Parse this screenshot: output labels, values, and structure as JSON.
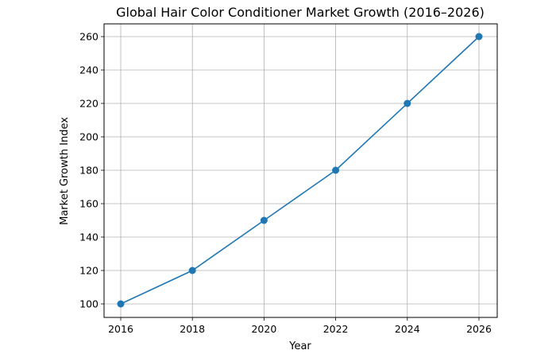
{
  "chart_data": {
    "type": "line",
    "title": "Global Hair Color Conditioner Market Growth (2016–2026)",
    "xlabel": "Year",
    "ylabel": "Market Growth Index",
    "x": [
      2016,
      2018,
      2020,
      2022,
      2024,
      2026
    ],
    "series": [
      {
        "name": "Market Growth Index",
        "values": [
          100,
          120,
          150,
          180,
          220,
          260
        ],
        "color": "#1f77b4",
        "marker": "circle"
      }
    ],
    "xticks": [
      2016,
      2018,
      2020,
      2022,
      2024,
      2026
    ],
    "yticks": [
      100,
      120,
      140,
      160,
      180,
      200,
      220,
      240,
      260
    ],
    "xlim": [
      2015.5,
      2026.5
    ],
    "ylim": [
      92,
      268
    ],
    "grid": true,
    "legend": false
  }
}
